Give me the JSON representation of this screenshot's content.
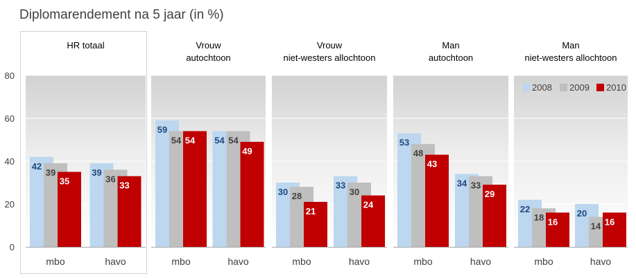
{
  "chart_data": {
    "type": "bar",
    "title": "Diplomarendement na 5 jaar (in %)",
    "ylim": [
      0,
      80
    ],
    "yticks": [
      "0",
      "20",
      "40",
      "60",
      "80"
    ],
    "categories": [
      "mbo",
      "havo"
    ],
    "legend": {
      "placement": "top-right",
      "entries": [
        {
          "label": "2008",
          "color": "#bcd7ef"
        },
        {
          "label": "2009",
          "color": "#bfbfbf"
        },
        {
          "label": "2010",
          "color": "#c00000"
        }
      ]
    },
    "label_colors": {
      "2008": "#1f497d",
      "2009": "#404040",
      "2010": "#ffffff"
    },
    "panels": [
      {
        "label_lines": [
          "HR totaal"
        ],
        "highlighted": true,
        "series": [
          {
            "name": "2008",
            "values": [
              42,
              39
            ]
          },
          {
            "name": "2009",
            "values": [
              39,
              36
            ]
          },
          {
            "name": "2010",
            "values": [
              35,
              33
            ]
          }
        ]
      },
      {
        "label_lines": [
          "Vrouw",
          "autochtoon"
        ],
        "highlighted": false,
        "series": [
          {
            "name": "2008",
            "values": [
              59,
              54
            ]
          },
          {
            "name": "2009",
            "values": [
              54,
              54
            ]
          },
          {
            "name": "2010",
            "values": [
              54,
              49
            ]
          }
        ]
      },
      {
        "label_lines": [
          "Vrouw",
          "niet-westers allochtoon"
        ],
        "highlighted": false,
        "series": [
          {
            "name": "2008",
            "values": [
              30,
              33
            ]
          },
          {
            "name": "2009",
            "values": [
              28,
              30
            ]
          },
          {
            "name": "2010",
            "values": [
              21,
              24
            ]
          }
        ]
      },
      {
        "label_lines": [
          "Man",
          "autochtoon"
        ],
        "highlighted": false,
        "series": [
          {
            "name": "2008",
            "values": [
              53,
              34
            ]
          },
          {
            "name": "2009",
            "values": [
              48,
              33
            ]
          },
          {
            "name": "2010",
            "values": [
              43,
              29
            ]
          }
        ]
      },
      {
        "label_lines": [
          "Man",
          "niet-westers allochtoon"
        ],
        "highlighted": false,
        "series": [
          {
            "name": "2008",
            "values": [
              22,
              20
            ]
          },
          {
            "name": "2009",
            "values": [
              18,
              14
            ]
          },
          {
            "name": "2010",
            "values": [
              16,
              16
            ]
          }
        ]
      }
    ]
  }
}
